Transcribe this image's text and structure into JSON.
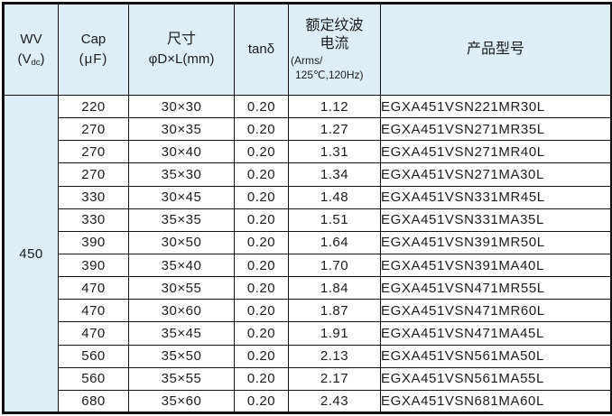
{
  "table": {
    "header": {
      "wv_line1": "WV",
      "wv_line2_pre": "(V",
      "wv_line2_sub": "dc",
      "wv_line2_post": ")",
      "cap_line1": "Cap",
      "cap_line2": "(μF)",
      "size_line1": "尺寸",
      "size_line2": "φD×L(mm)",
      "tand": "tanδ",
      "ripple_line1": "额定纹波",
      "ripple_line2": "电流",
      "ripple_line3": "(Arms/",
      "ripple_line4": "125℃,120Hz)",
      "part": "产品型号"
    },
    "wv_value": "450",
    "rows": [
      {
        "cap": "220",
        "size": "30×30",
        "tand": "0.20",
        "ripple": "1.12",
        "part": "EGXA451VSN221MR30L"
      },
      {
        "cap": "270",
        "size": "30×35",
        "tand": "0.20",
        "ripple": "1.27",
        "part": "EGXA451VSN271MR35L"
      },
      {
        "cap": "270",
        "size": "30×40",
        "tand": "0.20",
        "ripple": "1.31",
        "part": "EGXA451VSN271MR40L"
      },
      {
        "cap": "270",
        "size": "35×30",
        "tand": "0.20",
        "ripple": "1.34",
        "part": "EGXA451VSN271MA30L"
      },
      {
        "cap": "330",
        "size": "30×45",
        "tand": "0.20",
        "ripple": "1.48",
        "part": "EGXA451VSN331MR45L"
      },
      {
        "cap": "330",
        "size": "35×35",
        "tand": "0.20",
        "ripple": "1.51",
        "part": "EGXA451VSN331MA35L"
      },
      {
        "cap": "390",
        "size": "30×50",
        "tand": "0.20",
        "ripple": "1.64",
        "part": "EGXA451VSN391MR50L"
      },
      {
        "cap": "390",
        "size": "35×40",
        "tand": "0.20",
        "ripple": "1.70",
        "part": "EGXA451VSN391MA40L"
      },
      {
        "cap": "470",
        "size": "30×55",
        "tand": "0.20",
        "ripple": "1.84",
        "part": "EGXA451VSN471MR55L"
      },
      {
        "cap": "470",
        "size": "30×60",
        "tand": "0.20",
        "ripple": "1.87",
        "part": "EGXA451VSN471MR60L"
      },
      {
        "cap": "470",
        "size": "35×45",
        "tand": "0.20",
        "ripple": "1.91",
        "part": "EGXA451VSN471MA45L"
      },
      {
        "cap": "560",
        "size": "35×50",
        "tand": "0.20",
        "ripple": "2.13",
        "part": "EGXA451VSN561MA50L"
      },
      {
        "cap": "560",
        "size": "35×55",
        "tand": "0.20",
        "ripple": "2.17",
        "part": "EGXA451VSN561MA55L"
      },
      {
        "cap": "680",
        "size": "35×60",
        "tand": "0.20",
        "ripple": "2.43",
        "part": "EGXA451VSN681MA60L"
      }
    ],
    "colors": {
      "header_bg": "#ddeef7",
      "border": "#111111",
      "text": "#1c1c1c"
    }
  }
}
